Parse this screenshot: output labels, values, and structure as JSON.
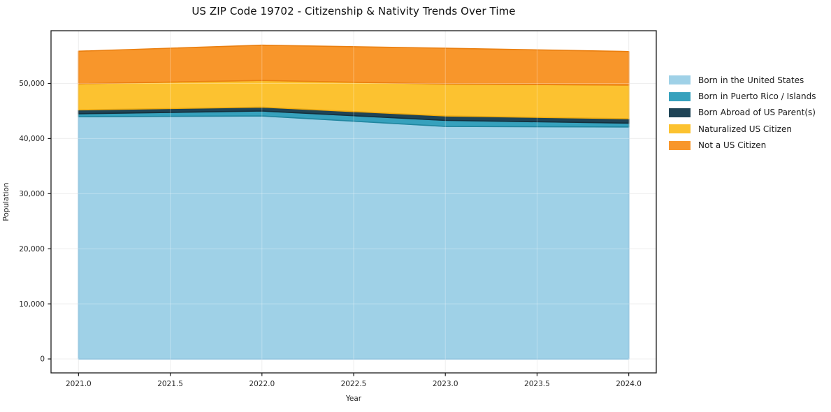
{
  "chart_data": {
    "type": "area",
    "stacked": true,
    "title": "US ZIP Code 19702 - Citizenship & Nativity Trends Over Time",
    "xlabel": "Year",
    "ylabel": "Population",
    "x": [
      2021.0,
      2022.0,
      2023.0,
      2024.0
    ],
    "series": [
      {
        "name": "Born in the United States",
        "color": "#9fd1e7",
        "edge_color": "#7ab8d9",
        "values": [
          43950,
          44100,
          42200,
          42100
        ]
      },
      {
        "name": "Born in Puerto Rico / Islands",
        "color": "#36a1bd",
        "edge_color": "#21869f",
        "values": [
          550,
          900,
          1100,
          700
        ]
      },
      {
        "name": "Born Abroad of US Parent(s)",
        "color": "#1f4456",
        "edge_color": "#14303d",
        "values": [
          700,
          700,
          800,
          800
        ]
      },
      {
        "name": "Naturalized US Citizen",
        "color": "#fcc230",
        "edge_color": "#f0ab0e",
        "values": [
          4750,
          4850,
          5800,
          6100
        ]
      },
      {
        "name": "Not a US Citizen",
        "color": "#f8962b",
        "edge_color": "#ea7f10",
        "values": [
          5900,
          6400,
          6500,
          6100
        ]
      }
    ],
    "totals_by_year": [
      55850,
      56950,
      56400,
      55800
    ],
    "xlim": [
      2020.85,
      2024.15
    ],
    "ylim": [
      -2530,
      59570
    ],
    "xticks": {
      "values": [
        2021.0,
        2021.5,
        2022.0,
        2022.5,
        2023.0,
        2023.5,
        2024.0
      ],
      "labels": [
        "2021.0",
        "2021.5",
        "2022.0",
        "2022.5",
        "2023.0",
        "2023.5",
        "2024.0"
      ]
    },
    "yticks": {
      "values": [
        0,
        10000,
        20000,
        30000,
        40000,
        50000
      ],
      "labels": [
        "0",
        "10,000",
        "20,000",
        "30,000",
        "40,000",
        "50,000"
      ]
    },
    "grid": true,
    "legend_position": "right-outside",
    "grid_color": "#e9e9e9",
    "spine_color": "#1a1a1a",
    "tick_label_color": "#262626"
  }
}
